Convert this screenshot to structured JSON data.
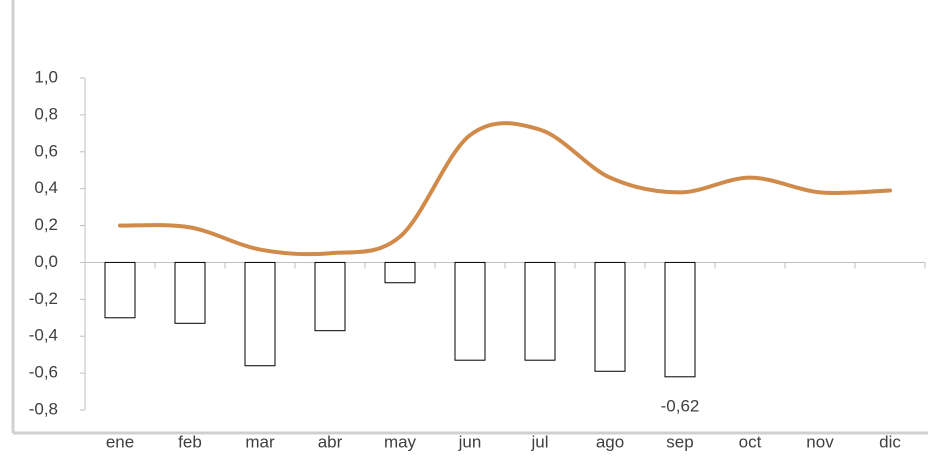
{
  "chart_data": {
    "type": "bar",
    "categories": [
      "ene",
      "feb",
      "mar",
      "abr",
      "may",
      "jun",
      "jul",
      "ago",
      "sep",
      "oct",
      "nov",
      "dic"
    ],
    "series": [
      {
        "type": "bar",
        "color": "#ffffff",
        "stroke": "#000000",
        "values": [
          -0.3,
          -0.33,
          -0.56,
          -0.37,
          -0.11,
          -0.53,
          -0.53,
          -0.59,
          -0.62,
          null,
          null,
          null
        ],
        "value_labels": [
          null,
          null,
          null,
          null,
          null,
          null,
          null,
          null,
          "-0,62",
          null,
          null,
          null
        ]
      },
      {
        "type": "line",
        "color": "#d08a4a",
        "values": [
          0.2,
          0.19,
          0.07,
          0.05,
          0.14,
          0.69,
          0.72,
          0.46,
          0.38,
          0.46,
          0.38,
          0.39
        ]
      }
    ],
    "ylim": [
      -0.8,
      1.0
    ],
    "yticks": [
      {
        "value": -0.8,
        "label": "-0,8"
      },
      {
        "value": -0.6,
        "label": "-0,6"
      },
      {
        "value": -0.4,
        "label": "-0,4"
      },
      {
        "value": -0.2,
        "label": "-0,2"
      },
      {
        "value": 0,
        "label": "0,0"
      },
      {
        "value": 0.2,
        "label": "0,2"
      },
      {
        "value": 0.4,
        "label": "0,4"
      },
      {
        "value": 0.6,
        "label": "0,6"
      },
      {
        "value": 0.8,
        "label": "0,8"
      },
      {
        "value": 1.0,
        "label": "1,0"
      }
    ],
    "grid": false
  }
}
